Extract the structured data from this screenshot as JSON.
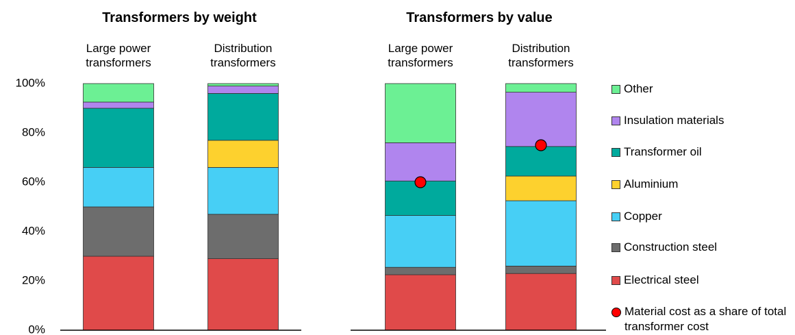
{
  "legend": [
    {
      "name": "Electrical steel",
      "color": "#e04a4a"
    },
    {
      "name": "Construction steel",
      "color": "#6d6d6d"
    },
    {
      "name": "Copper",
      "color": "#47cff5"
    },
    {
      "name": "Aluminium",
      "color": "#fdd12e"
    },
    {
      "name": "Transformer oil",
      "color": "#00aa9d"
    },
    {
      "name": "Insulation materials",
      "color": "#b085ee"
    },
    {
      "name": "Other",
      "color": "#6cf094"
    }
  ],
  "chart_data": [
    {
      "type": "bar",
      "stacked": true,
      "title": "Transformers by weight",
      "categories": [
        "Large power transformers",
        "Distribution transformers"
      ],
      "series": [
        {
          "values": [
            30,
            29
          ]
        },
        {
          "values": [
            20,
            18
          ]
        },
        {
          "values": [
            16,
            19
          ]
        },
        {
          "values": [
            0,
            11
          ]
        },
        {
          "values": [
            24,
            19
          ]
        },
        {
          "values": [
            2.5,
            3
          ]
        },
        {
          "values": [
            7.5,
            1
          ]
        }
      ],
      "ylim": [
        0,
        100
      ],
      "yticks": [
        {
          "value": 0,
          "label": "0%"
        },
        {
          "value": 20,
          "label": "20%"
        },
        {
          "value": 40,
          "label": "40%"
        },
        {
          "value": 60,
          "label": "60%"
        },
        {
          "value": 80,
          "label": "80%"
        },
        {
          "value": 100,
          "label": "100%"
        }
      ]
    },
    {
      "type": "bar",
      "stacked": true,
      "title": "Transformers by value",
      "categories": [
        "Large power transformers",
        "Distribution transformers"
      ],
      "series": [
        {
          "values": [
            22.5,
            23
          ]
        },
        {
          "values": [
            3,
            3
          ]
        },
        {
          "values": [
            21,
            26.5
          ]
        },
        {
          "values": [
            0,
            10
          ]
        },
        {
          "values": [
            14,
            12
          ]
        },
        {
          "values": [
            15.5,
            22
          ]
        },
        {
          "values": [
            24,
            3.5
          ]
        }
      ],
      "markers": {
        "name": "Material cost as a share of total transformer cost",
        "color": "#ff0000",
        "values": [
          60,
          75
        ]
      },
      "ylim": [
        0,
        100
      ]
    }
  ]
}
